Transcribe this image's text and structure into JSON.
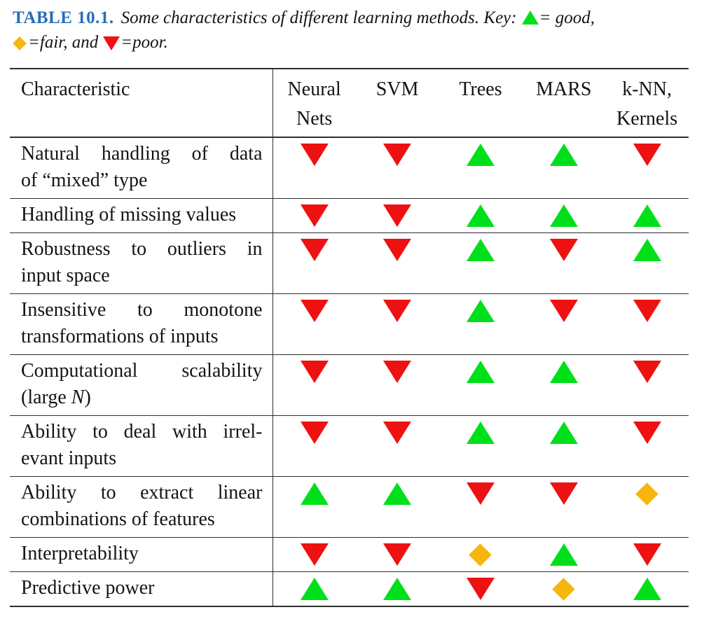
{
  "colors": {
    "accent_blue": "#2a6db8",
    "good": "#00e01a",
    "fair": "#f7b50d",
    "poor": "#ee1111",
    "rule": "#2e2e2e",
    "text": "#141414"
  },
  "caption": {
    "label": "TABLE 10.1.",
    "line1": "Some characteristics of different learning methods. Key:",
    "good_suffix": "= good,",
    "fair_suffix": "=fair, and",
    "poor_suffix": "=poor."
  },
  "table": {
    "header": {
      "characteristic": "Characteristic",
      "methods": [
        {
          "lines": [
            "Neural",
            "Nets"
          ]
        },
        {
          "lines": [
            "SVM"
          ]
        },
        {
          "lines": [
            "Trees"
          ]
        },
        {
          "lines": [
            "MARS"
          ]
        },
        {
          "lines": [
            "k-NN,",
            "Kernels"
          ]
        }
      ]
    },
    "rows": [
      {
        "lines": [
          "Natural handling of data",
          "of “mixed” type"
        ],
        "ratings": [
          "poor",
          "poor",
          "good",
          "good",
          "poor"
        ]
      },
      {
        "lines": [
          "Handling of missing values"
        ],
        "ratings": [
          "poor",
          "poor",
          "good",
          "good",
          "good"
        ]
      },
      {
        "lines": [
          "Robustness to outliers in",
          "input space"
        ],
        "ratings": [
          "poor",
          "poor",
          "good",
          "poor",
          "good"
        ]
      },
      {
        "lines": [
          "Insensitive to monotone",
          "transformations of inputs"
        ],
        "ratings": [
          "poor",
          "poor",
          "good",
          "poor",
          "poor"
        ]
      },
      {
        "lines": [
          "Computational scalability",
          "(large N)"
        ],
        "ratings": [
          "poor",
          "poor",
          "good",
          "good",
          "poor"
        ]
      },
      {
        "lines": [
          "Ability to deal with irrel-",
          "evant inputs"
        ],
        "ratings": [
          "poor",
          "poor",
          "good",
          "good",
          "poor"
        ]
      },
      {
        "lines": [
          "Ability to extract linear",
          "combinations of features"
        ],
        "ratings": [
          "good",
          "good",
          "poor",
          "poor",
          "fair"
        ]
      },
      {
        "lines": [
          "Interpretability"
        ],
        "ratings": [
          "poor",
          "poor",
          "fair",
          "good",
          "poor"
        ]
      },
      {
        "lines": [
          "Predictive power"
        ],
        "ratings": [
          "good",
          "good",
          "poor",
          "fair",
          "good"
        ]
      }
    ]
  }
}
